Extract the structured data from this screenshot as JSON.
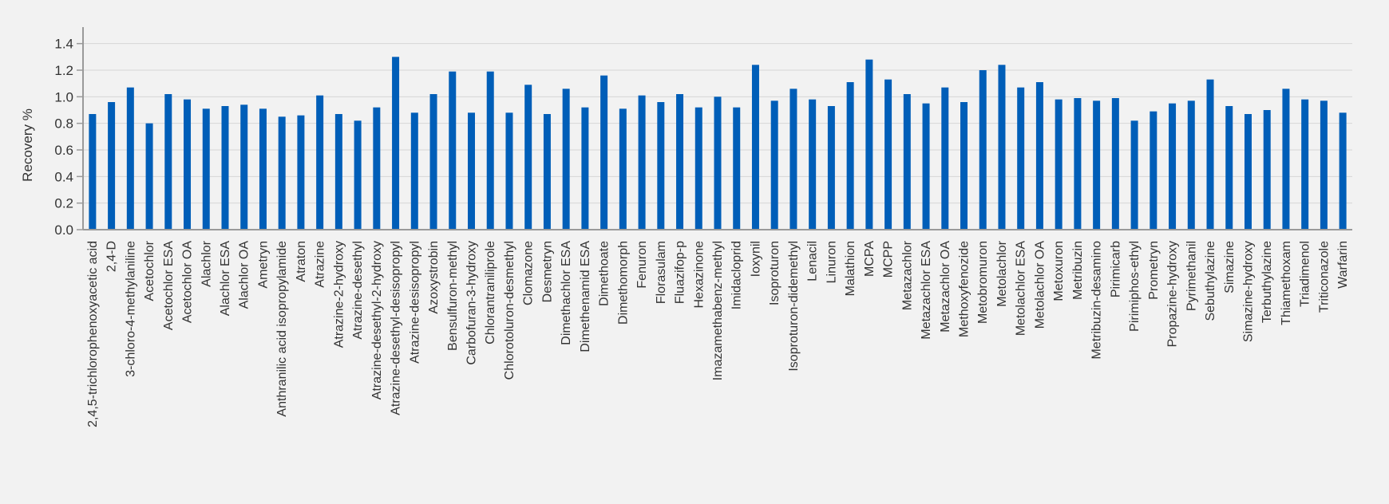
{
  "chart_data": {
    "type": "bar",
    "title": "",
    "xlabel": "",
    "ylabel": "Recovery %",
    "ylim": [
      0,
      1.5
    ],
    "yticks": [
      "0.0",
      "0.2",
      "0.4",
      "0.6",
      "0.8",
      "1.0",
      "1.2",
      "1.4"
    ],
    "grid": true,
    "bar_color": "#005eb8",
    "categories": [
      "2,4,5-trichlorophenoxyacetic acid",
      "2,4-D",
      "3-chloro-4-methylaniline",
      "Acetochlor",
      "Acetochlor ESA",
      "Acetochlor OA",
      "Alachlor",
      "Alachlor ESA",
      "Alachlor OA",
      "Ametryn",
      "Anthranilic acid isopropylamide",
      "Atraton",
      "Atrazine",
      "Atrazine-2-hydroxy",
      "Atrazine-desethyl",
      "Atrazine-desethyl-2-hydroxy",
      "Atrazine-desethyl-desisopropyl",
      "Atrazine-desisopropyl",
      "Azoxystrobin",
      "Bensulfuron-methyl",
      "Carbofuran-3-hydroxy",
      "Chlorantraniliprole",
      "Chlorotoluron-desmethyl",
      "Clomazone",
      "Desmetryn",
      "Dimethachlor ESA",
      "Dimethenamid ESA",
      "Dimethoate",
      "Dimethomorph",
      "Fenuron",
      "Florasulam",
      "Fluazifop-p",
      "Hexazinone",
      "Imazamethabenz-methyl",
      "Imidacloprid",
      "Ioxynil",
      "Isoproturon",
      "Isoproturon-didemethyl",
      "Lenacil",
      "Linuron",
      "Malathion",
      "MCPA",
      "MCPP",
      "Metazachlor",
      "Metazachlor ESA",
      "Metazachlor OA",
      "Methoxyfenozide",
      "Metobromuron",
      "Metolachlor",
      "Metolachlor ESA",
      "Metolachlor OA",
      "Metoxuron",
      "Metribuzin",
      "Metribuzin-desamino",
      "Pirimicarb",
      "Pirimiphos-ethyl",
      "Prometryn",
      "Propazine-hydroxy",
      "Pyrimethanil",
      "Sebuthylazine",
      "Simazine",
      "Simazine-hydroxy",
      "Terbuthylazine",
      "Thiamethoxam",
      "Triadimenol",
      "Triticonazole",
      "Warfarin"
    ],
    "values": [
      0.87,
      0.96,
      1.07,
      0.8,
      1.02,
      0.98,
      0.91,
      0.93,
      0.94,
      0.91,
      0.85,
      0.86,
      1.01,
      0.87,
      0.82,
      0.92,
      1.3,
      0.88,
      1.02,
      1.19,
      0.88,
      1.19,
      0.88,
      1.09,
      0.87,
      1.06,
      0.92,
      1.16,
      0.91,
      1.01,
      0.96,
      1.02,
      0.92,
      1.0,
      0.92,
      1.24,
      0.97,
      1.06,
      0.98,
      0.93,
      1.11,
      1.28,
      1.13,
      1.02,
      0.95,
      1.07,
      0.96,
      1.2,
      1.24,
      1.07,
      1.11,
      0.98,
      0.99,
      0.97,
      0.99,
      0.82,
      0.89,
      0.95,
      0.97,
      1.13,
      0.93,
      0.87,
      0.9,
      1.06,
      0.98,
      0.97,
      0.88
    ]
  }
}
